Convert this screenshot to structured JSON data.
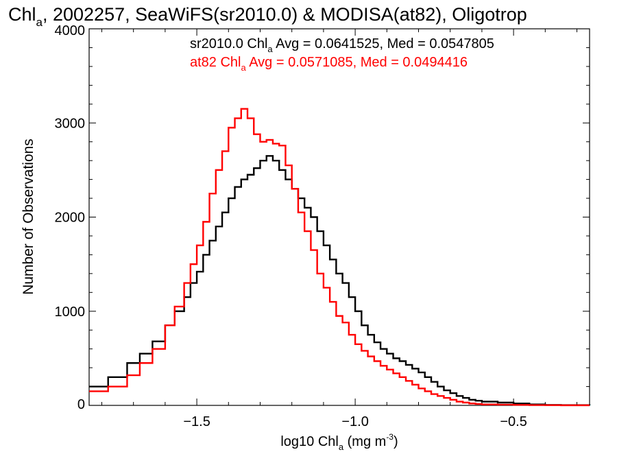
{
  "chart_data": {
    "type": "line",
    "title": "Chl",
    "title_sub": "a",
    "title_rest": ", 2002257, SeaWiFS(sr2010.0) & MODISA(at82), Oligotrop",
    "xlabel": "log10 Chl",
    "xlabel_sub": "a",
    "xlabel_unit": " (mg m",
    "xlabel_sup": "-3",
    "xlabel_close": ")",
    "ylabel": "Number of Observations",
    "xlim": [
      -1.84,
      -0.26
    ],
    "ylim": [
      0,
      4000
    ],
    "xticks": [
      -1.5,
      -1.0,
      -0.5
    ],
    "xtick_labels": [
      "−1.5",
      "−1.0",
      "−0.5"
    ],
    "yticks": [
      0,
      1000,
      2000,
      3000,
      4000
    ],
    "ytick_labels": [
      "0",
      "1000",
      "2000",
      "3000",
      "4000"
    ],
    "annotations": [
      {
        "pre": "sr2010.0 Chl",
        "sub": "a",
        "post": " Avg = 0.0641525, Med = 0.0547805",
        "color": "#000000"
      },
      {
        "pre": "at82 Chl",
        "sub": "a",
        "post": " Avg = 0.0571085, Med = 0.0494416",
        "color": "#ff0000"
      }
    ],
    "series": [
      {
        "color": "#000000",
        "x": [
          -1.84,
          -1.78,
          -1.72,
          -1.68,
          -1.64,
          -1.6,
          -1.57,
          -1.54,
          -1.52,
          -1.5,
          -1.48,
          -1.46,
          -1.44,
          -1.42,
          -1.4,
          -1.38,
          -1.36,
          -1.34,
          -1.32,
          -1.3,
          -1.28,
          -1.26,
          -1.24,
          -1.22,
          -1.2,
          -1.18,
          -1.16,
          -1.14,
          -1.12,
          -1.1,
          -1.08,
          -1.06,
          -1.04,
          -1.02,
          -1.0,
          -0.98,
          -0.96,
          -0.94,
          -0.92,
          -0.9,
          -0.88,
          -0.86,
          -0.84,
          -0.82,
          -0.8,
          -0.78,
          -0.76,
          -0.74,
          -0.72,
          -0.7,
          -0.68,
          -0.66,
          -0.64,
          -0.62,
          -0.6,
          -0.55,
          -0.5,
          -0.45,
          -0.4,
          -0.35,
          -0.26
        ],
        "y": [
          200,
          300,
          450,
          550,
          680,
          850,
          1000,
          1150,
          1300,
          1420,
          1600,
          1750,
          1900,
          2050,
          2200,
          2320,
          2400,
          2450,
          2520,
          2600,
          2650,
          2600,
          2500,
          2400,
          2300,
          2200,
          2100,
          2000,
          1850,
          1700,
          1550,
          1400,
          1300,
          1150,
          1000,
          850,
          750,
          670,
          600,
          550,
          500,
          470,
          430,
          390,
          350,
          300,
          250,
          200,
          160,
          130,
          100,
          80,
          60,
          50,
          40,
          30,
          20,
          10,
          5,
          3,
          1
        ]
      },
      {
        "color": "#ff0000",
        "x": [
          -1.84,
          -1.78,
          -1.72,
          -1.68,
          -1.64,
          -1.6,
          -1.57,
          -1.54,
          -1.52,
          -1.5,
          -1.48,
          -1.46,
          -1.44,
          -1.42,
          -1.4,
          -1.38,
          -1.36,
          -1.35,
          -1.34,
          -1.32,
          -1.3,
          -1.28,
          -1.26,
          -1.24,
          -1.22,
          -1.2,
          -1.18,
          -1.16,
          -1.14,
          -1.12,
          -1.1,
          -1.08,
          -1.06,
          -1.04,
          -1.02,
          -1.0,
          -0.98,
          -0.96,
          -0.94,
          -0.92,
          -0.9,
          -0.88,
          -0.86,
          -0.84,
          -0.82,
          -0.8,
          -0.78,
          -0.76,
          -0.74,
          -0.72,
          -0.7,
          -0.68,
          -0.66,
          -0.64,
          -0.62,
          -0.6,
          -0.55,
          -0.5,
          -0.45,
          -0.4,
          -0.35,
          -0.26
        ],
        "y": [
          150,
          200,
          320,
          450,
          600,
          850,
          1050,
          1300,
          1500,
          1700,
          1950,
          2250,
          2500,
          2700,
          2950,
          3050,
          3150,
          3150,
          3050,
          2880,
          2800,
          2820,
          2780,
          2760,
          2550,
          2300,
          2050,
          1850,
          1650,
          1400,
          1250,
          1100,
          950,
          880,
          750,
          650,
          580,
          520,
          470,
          420,
          380,
          340,
          300,
          260,
          220,
          180,
          150,
          120,
          100,
          80,
          60,
          40,
          30,
          20,
          15,
          10,
          8,
          5,
          3,
          2,
          1,
          1
        ]
      }
    ]
  }
}
